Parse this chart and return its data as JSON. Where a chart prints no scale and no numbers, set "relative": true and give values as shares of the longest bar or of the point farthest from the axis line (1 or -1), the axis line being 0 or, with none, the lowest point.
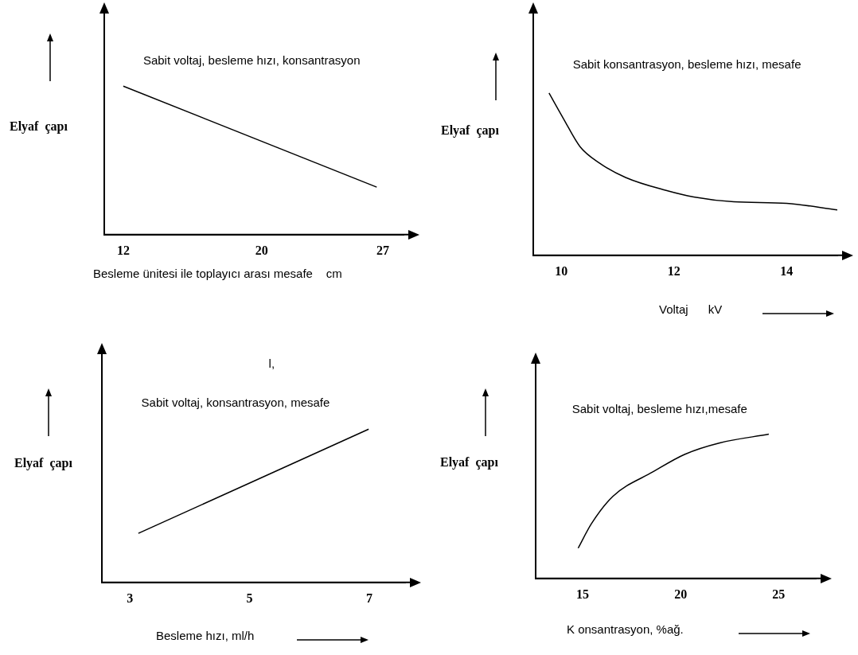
{
  "chart_data": [
    {
      "type": "line",
      "relative": true,
      "tick_labels": "x",
      "xlabel": "Besleme ünitesi ile toplayıcı arası mesafe    cm",
      "ylabel": "Elyaf  çapı",
      "annotations": [
        "Sabit voltaj, besleme hızı, konsantrasyon"
      ],
      "xlim": [
        10.9,
        28.2
      ],
      "xticks": [
        12,
        20,
        27
      ],
      "series": [
        {
          "color": "#000000",
          "x": [
            12,
            26.65
          ],
          "values": [
            1,
            0.32
          ]
        }
      ]
    },
    {
      "type": "line",
      "relative": true,
      "tick_labels": "x",
      "xlabel": "Voltaj      kV",
      "ylabel": "Elyaf  çapı",
      "annotations": [
        "Sabit konsantrasyon, besleme hızı, mesafe"
      ],
      "xlim": [
        9.5,
        14.9
      ],
      "xticks": [
        10,
        12,
        14
      ],
      "series": [
        {
          "color": "#000000",
          "x": [
            9.78,
            10.04,
            10.33,
            10.67,
            11.14,
            11.86,
            12.35,
            13.06,
            14.0,
            14.9
          ],
          "values": [
            1,
            0.84,
            0.67,
            0.57,
            0.48,
            0.4,
            0.36,
            0.33,
            0.32,
            0.28
          ]
        }
      ]
    },
    {
      "type": "line",
      "relative": true,
      "tick_labels": "x",
      "xlabel": "Besleme hızı, ml/h",
      "ylabel": "Elyaf  çapı",
      "annotations": [
        "Sabit voltaj, konsantrasyon, mesafe",
        "l,"
      ],
      "xlim": [
        2.53,
        7.6
      ],
      "xticks": [
        3,
        5,
        7
      ],
      "series": [
        {
          "color": "#000000",
          "x": [
            3.14,
            6.99
          ],
          "values": [
            0.32,
            1
          ]
        }
      ]
    },
    {
      "type": "line",
      "relative": true,
      "tick_labels": "x",
      "xlabel": "K onsantrasyon, %ağ.",
      "ylabel": "Elyaf  çapı",
      "annotations": [
        "Sabit voltaj, besleme hızı,mesafe"
      ],
      "xlim": [
        12.6,
        26.9
      ],
      "xticks": [
        15,
        20,
        25
      ],
      "series": [
        {
          "color": "#000000",
          "x": [
            14.77,
            15.45,
            16.55,
            18.6,
            20.2,
            22.0,
            24.5
          ],
          "values": [
            0.21,
            0.38,
            0.57,
            0.74,
            0.86,
            0.94,
            1
          ]
        }
      ]
    }
  ]
}
